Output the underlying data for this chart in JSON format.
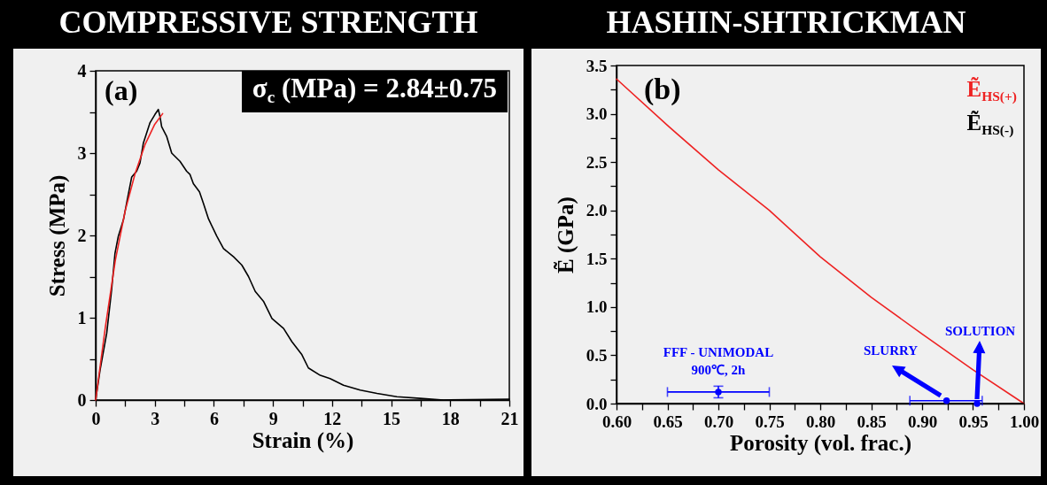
{
  "chart_data": [
    {
      "type": "line",
      "title": "COMPRESSIVE STRENGTH",
      "xlabel": "Strain (%)",
      "ylabel": "Stress (MPa)",
      "annotations": [
        "(a)",
        "σ$_{c}$ (MPa) = 2.84±0.75"
      ],
      "xlim": [
        0,
        21
      ],
      "ylim": [
        0,
        4
      ],
      "xticks": [
        0,
        {
          "value": 1.5,
          "label": null
        },
        3,
        {
          "value": 4.5,
          "label": null
        },
        6,
        {
          "value": 7.5,
          "label": null
        },
        9,
        {
          "value": 10.5,
          "label": null
        },
        12,
        {
          "value": 13.5,
          "label": null
        },
        15,
        {
          "value": 16.5,
          "label": null
        },
        18,
        {
          "value": 19.5,
          "label": null
        },
        21
      ],
      "yticks": [
        0,
        {
          "value": 0.5,
          "label": null
        },
        1,
        {
          "value": 1.5,
          "label": null
        },
        2,
        {
          "value": 2.5,
          "label": null
        },
        3,
        {
          "value": 3.5,
          "label": null
        },
        4
      ],
      "series": [
        {
          "type": "line",
          "color": "#000000",
          "x": [
            0,
            0.22,
            0.56,
            0.81,
            0.98,
            1.15,
            1.41,
            1.57,
            1.83,
            2.08,
            2.25,
            2.42,
            2.76,
            3.01,
            3.18,
            3.27,
            3.35,
            3.61,
            3.86,
            4.28,
            4.62,
            4.79,
            4.96,
            5.27,
            5.47,
            5.73,
            6.15,
            6.49,
            7.0,
            7.42,
            7.76,
            8.1,
            8.52,
            8.95,
            9.54,
            9.96,
            10.47,
            10.8,
            11.4,
            11.9,
            12.58,
            13.43,
            14.28,
            15.29,
            16.48,
            17.66,
            21
          ],
          "values": [
            0,
            0.36,
            0.81,
            1.34,
            1.78,
            1.99,
            2.19,
            2.39,
            2.71,
            2.78,
            2.88,
            3.12,
            3.37,
            3.47,
            3.53,
            3.44,
            3.32,
            3.2,
            3.0,
            2.9,
            2.78,
            2.74,
            2.63,
            2.53,
            2.39,
            2.2,
            1.99,
            1.84,
            1.74,
            1.64,
            1.5,
            1.32,
            1.2,
            0.99,
            0.87,
            0.71,
            0.55,
            0.39,
            0.3,
            0.26,
            0.18,
            0.12,
            0.08,
            0.04,
            0.02,
            0,
            0.01
          ]
        },
        {
          "type": "line",
          "color": "#ee2222",
          "x": [
            0,
            0.5,
            1,
            1.5,
            2,
            2.5,
            3,
            3.4
          ],
          "values": [
            0,
            0.9,
            1.7,
            2.3,
            2.75,
            3.1,
            3.35,
            3.48
          ]
        }
      ]
    },
    {
      "type": "line",
      "title": "HASHIN-SHTRICKMAN",
      "xlabel": "Porosity (vol. frac.)",
      "ylabel": "Ẽ (GPa)",
      "legend": "top right",
      "annotations": [
        "(b)",
        {
          "text": "FFF - UNIMODAL\n900℃, 2h",
          "x": 0.7,
          "y": 0.12
        },
        "SLURRY",
        "SOLUTION"
      ],
      "xlim": [
        0.6,
        1.0
      ],
      "ylim": [
        0,
        3.5
      ],
      "xticks": [
        {
          "value": 0.6,
          "label": "0.60"
        },
        {
          "value": 0.625,
          "label": null
        },
        0.65,
        {
          "value": 0.675,
          "label": null
        },
        {
          "value": 0.7,
          "label": "0.70"
        },
        {
          "value": 0.725,
          "label": null
        },
        0.75,
        {
          "value": 0.775,
          "label": null
        },
        {
          "value": 0.8,
          "label": "0.80"
        },
        {
          "value": 0.825,
          "label": null
        },
        0.85,
        {
          "value": 0.875,
          "label": null
        },
        {
          "value": 0.9,
          "label": "0.90"
        },
        {
          "value": 0.925,
          "label": null
        },
        0.95,
        {
          "value": 0.975,
          "label": null
        },
        {
          "value": 1.0,
          "label": "1.00"
        }
      ],
      "yticks": [
        {
          "value": 0,
          "label": "0.0"
        },
        {
          "value": 0.25,
          "label": null
        },
        0.5,
        {
          "value": 0.75,
          "label": null
        },
        {
          "value": 1,
          "label": "1.0"
        },
        {
          "value": 1.25,
          "label": null
        },
        1.5,
        {
          "value": 1.75,
          "label": null
        },
        {
          "value": 2,
          "label": "2.0"
        },
        {
          "value": 2.25,
          "label": null
        },
        2.5,
        {
          "value": 2.75,
          "label": null
        },
        {
          "value": 3,
          "label": "3.0"
        },
        {
          "value": 3.25,
          "label": null
        },
        3.5
      ],
      "series": [
        {
          "type": "line",
          "name": "Ẽ$_{HS(+)}$",
          "color": "#ee2222",
          "x": [
            0.6,
            0.65,
            0.7,
            0.75,
            0.8,
            0.85,
            0.9,
            0.95,
            1.0
          ],
          "values": [
            3.36,
            2.88,
            2.42,
            2.0,
            1.52,
            1.1,
            0.72,
            0.35,
            0
          ]
        },
        {
          "type": "line",
          "name": "Ẽ$_{HS(-)}$",
          "color": "#000000",
          "x": [
            0.6,
            1.0
          ],
          "values": [
            0,
            0
          ]
        },
        {
          "type": "scatter",
          "color": "#0000ff",
          "marker": "circle",
          "x": [
            0.7,
            0.924,
            0.954
          ],
          "values": [
            0.12,
            0.03,
            0
          ],
          "errors": [
            0.06,
            null,
            null
          ],
          "xerrors": [
            [
              0.65,
              0.75
            ],
            [
              0.888,
              0.959
            ],
            null
          ]
        }
      ]
    }
  ]
}
